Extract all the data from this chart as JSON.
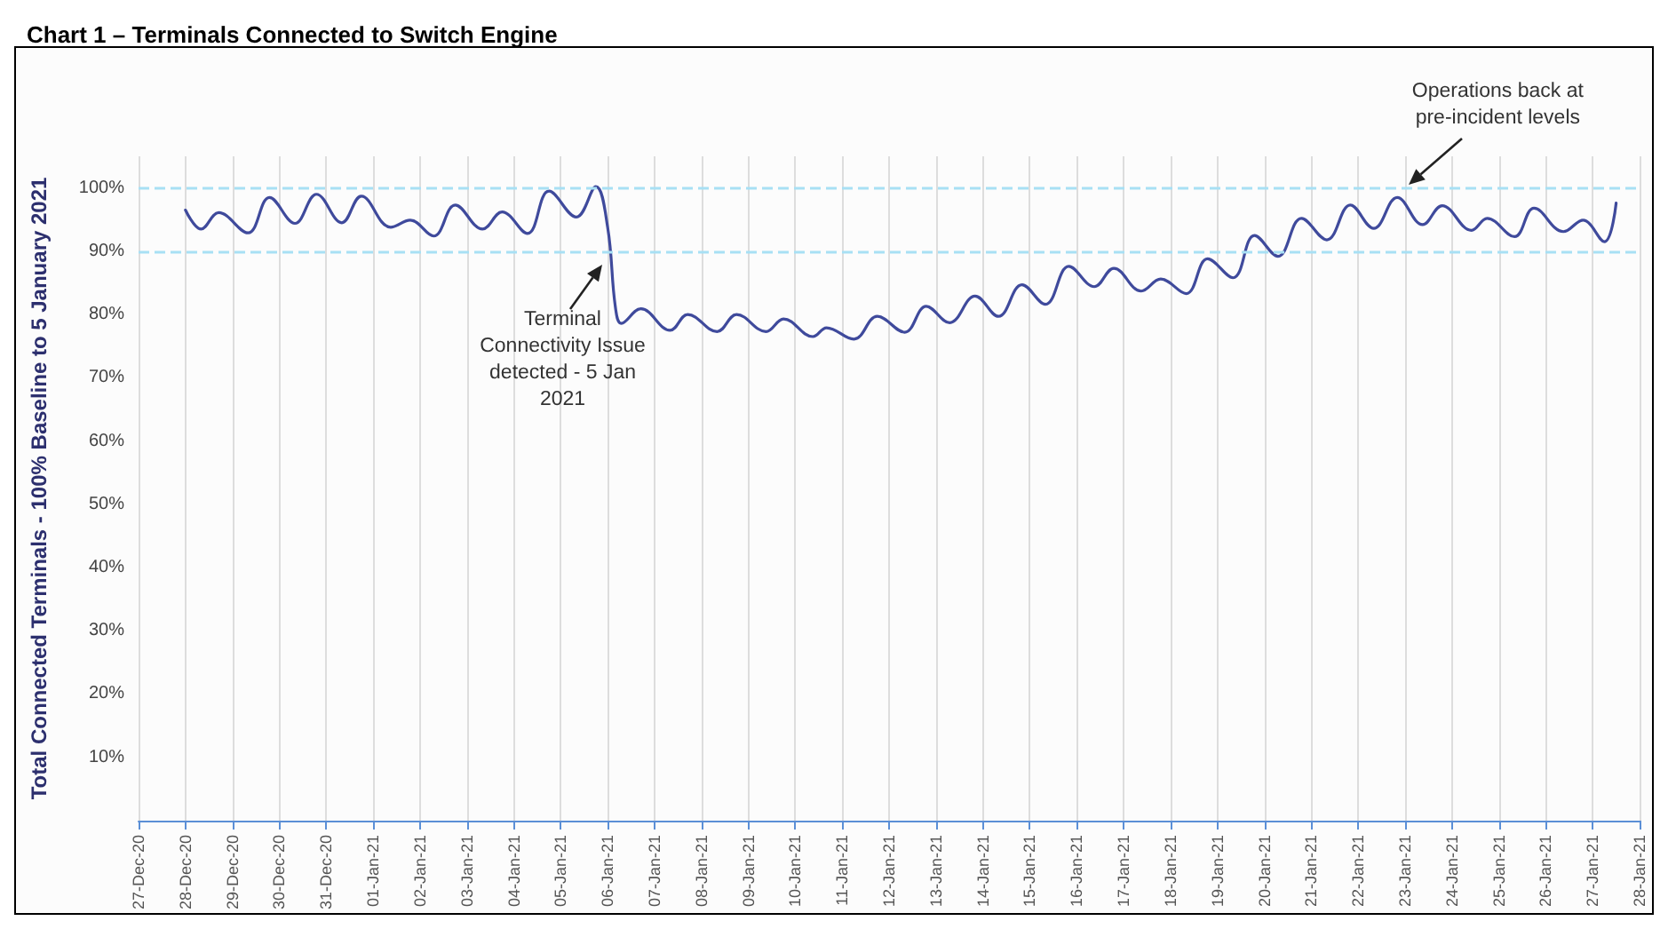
{
  "chart_data": {
    "type": "line",
    "title": "Chart 1 – Terminals Connected to Switch Engine",
    "ylabel": "Total Connected Terminals - 100% Baseline to 5 January 2021",
    "x": [
      "2020-12-28T00:00",
      "2020-12-28T08:00",
      "2020-12-28T17:00",
      "2020-12-29T08:00",
      "2020-12-29T19:00",
      "2020-12-30T08:00",
      "2020-12-30T19:00",
      "2020-12-31T08:00",
      "2020-12-31T18:00",
      "2021-01-01T09:00",
      "2021-01-01T19:00",
      "2021-01-02T07:00",
      "2021-01-02T18:00",
      "2021-01-03T08:00",
      "2021-01-03T18:00",
      "2021-01-04T07:00",
      "2021-01-04T18:00",
      "2021-01-05T08:00",
      "2021-01-05T18:00",
      "2021-01-06T00:00",
      "2021-01-06T04:00",
      "2021-01-06T07:00",
      "2021-01-06T17:00",
      "2021-01-07T08:00",
      "2021-01-07T17:00",
      "2021-01-08T08:00",
      "2021-01-08T18:00",
      "2021-01-09T09:00",
      "2021-01-09T18:00",
      "2021-01-10T09:00",
      "2021-01-10T16:00",
      "2021-01-11T06:00",
      "2021-01-11T18:00",
      "2021-01-12T08:00",
      "2021-01-12T19:00",
      "2021-01-13T07:00",
      "2021-01-13T20:00",
      "2021-01-14T08:00",
      "2021-01-14T20:00",
      "2021-01-15T08:00",
      "2021-01-15T20:00",
      "2021-01-16T09:00",
      "2021-01-16T19:00",
      "2021-01-17T09:00",
      "2021-01-17T19:00",
      "2021-01-18T08:00",
      "2021-01-18T19:00",
      "2021-01-19T08:00",
      "2021-01-19T19:00",
      "2021-01-20T07:00",
      "2021-01-20T19:00",
      "2021-01-21T08:00",
      "2021-01-21T20:00",
      "2021-01-22T08:00",
      "2021-01-22T20:00",
      "2021-01-23T09:00",
      "2021-01-23T19:00",
      "2021-01-24T10:00",
      "2021-01-24T18:00",
      "2021-01-25T08:00",
      "2021-01-25T18:00",
      "2021-01-26T09:00",
      "2021-01-26T19:00",
      "2021-01-27T06:00",
      "2021-01-27T12:00"
    ],
    "series": [
      {
        "color": "#3f4a9c",
        "values": [
          96.5,
          93.5,
          96.1,
          92.9,
          98.5,
          94.4,
          99.0,
          94.5,
          98.7,
          93.8,
          94.9,
          92.4,
          97.3,
          93.5,
          96.2,
          92.8,
          99.5,
          95.4,
          100.2,
          93.8,
          81.1,
          78.6,
          80.9,
          77.5,
          80.0,
          77.3,
          80.0,
          77.3,
          79.3,
          76.5,
          77.9,
          76.1,
          79.7,
          77.2,
          81.3,
          78.7,
          82.9,
          79.7,
          84.7,
          81.6,
          87.6,
          84.4,
          87.3,
          83.7,
          85.6,
          83.3,
          88.8,
          85.8,
          92.5,
          89.2,
          95.2,
          91.8,
          97.3,
          93.6,
          98.5,
          94.2,
          97.2,
          93.3,
          95.2,
          92.3,
          96.8,
          93.1,
          94.9,
          91.5,
          97.6
        ]
      }
    ],
    "xlim": [
      "2020-12-27",
      "2021-01-28"
    ],
    "xticks": [
      {
        "value": "2020-12-27",
        "label": "27-Dec-20"
      },
      {
        "value": "2020-12-28",
        "label": "28-Dec-20"
      },
      {
        "value": "2020-12-29",
        "label": "29-Dec-20"
      },
      {
        "value": "2020-12-30",
        "label": "30-Dec-20"
      },
      {
        "value": "2020-12-31",
        "label": "31-Dec-20"
      },
      {
        "value": "2021-01-01",
        "label": "01-Jan-21"
      },
      {
        "value": "2021-01-02",
        "label": "02-Jan-21"
      },
      {
        "value": "2021-01-03",
        "label": "03-Jan-21"
      },
      {
        "value": "2021-01-04",
        "label": "04-Jan-21"
      },
      {
        "value": "2021-01-05",
        "label": "05-Jan-21"
      },
      {
        "value": "2021-01-06",
        "label": "06-Jan-21"
      },
      {
        "value": "2021-01-07",
        "label": "07-Jan-21"
      },
      {
        "value": "2021-01-08",
        "label": "08-Jan-21"
      },
      {
        "value": "2021-01-09",
        "label": "09-Jan-21"
      },
      {
        "value": "2021-01-10",
        "label": "10-Jan-21"
      },
      {
        "value": "2021-01-11",
        "label": "11-Jan-21"
      },
      {
        "value": "2021-01-12",
        "label": "12-Jan-21"
      },
      {
        "value": "2021-01-13",
        "label": "13-Jan-21"
      },
      {
        "value": "2021-01-14",
        "label": "14-Jan-21"
      },
      {
        "value": "2021-01-15",
        "label": "15-Jan-21"
      },
      {
        "value": "2021-01-16",
        "label": "16-Jan-21"
      },
      {
        "value": "2021-01-17",
        "label": "17-Jan-21"
      },
      {
        "value": "2021-01-18",
        "label": "18-Jan-21"
      },
      {
        "value": "2021-01-19",
        "label": "19-Jan-21"
      },
      {
        "value": "2021-01-20",
        "label": "20-Jan-21"
      },
      {
        "value": "2021-01-21",
        "label": "21-Jan-21"
      },
      {
        "value": "2021-01-22",
        "label": "22-Jan-21"
      },
      {
        "value": "2021-01-23",
        "label": "23-Jan-21"
      },
      {
        "value": "2021-01-24",
        "label": "24-Jan-21"
      },
      {
        "value": "2021-01-25",
        "label": "25-Jan-21"
      },
      {
        "value": "2021-01-26",
        "label": "26-Jan-21"
      },
      {
        "value": "2021-01-27",
        "label": "27-Jan-21"
      },
      {
        "value": "2021-01-28",
        "label": "28-Jan-21"
      }
    ],
    "ylim": [
      0,
      105
    ],
    "yticks": [
      {
        "value": 10,
        "label": "10%"
      },
      {
        "value": 20,
        "label": "20%"
      },
      {
        "value": 30,
        "label": "30%"
      },
      {
        "value": 40,
        "label": "40%"
      },
      {
        "value": 50,
        "label": "50%"
      },
      {
        "value": 60,
        "label": "60%"
      },
      {
        "value": 70,
        "label": "70%"
      },
      {
        "value": 80,
        "label": "80%"
      },
      {
        "value": 90,
        "label": "90%"
      },
      {
        "value": 100,
        "label": "100%"
      }
    ],
    "ref_lines": [
      {
        "axis": "y",
        "value": 100,
        "color": "#a8e0f4",
        "line_style": "dashed"
      },
      {
        "axis": "y",
        "value": 90,
        "color": "#a8e0f4",
        "line_style": "dashed"
      }
    ],
    "annotations": [
      {
        "text": "Terminal\nConnectivity Issue\ndetected - 5 Jan\n2021",
        "x": "2021-01-05T21:00",
        "y": 88
      },
      {
        "text": "Operations back at\npre-incident levels",
        "x": "2021-01-23T02:00",
        "y": 100.5
      }
    ],
    "grid": "x",
    "marker": "none",
    "line_style": "solid"
  }
}
